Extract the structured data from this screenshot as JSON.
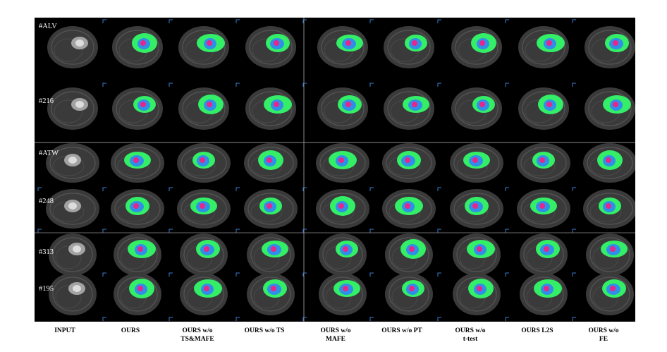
{
  "figure": {
    "rows": [
      {
        "label": "#ALV",
        "view": "axial"
      },
      {
        "label": "#216",
        "view": "axial"
      },
      {
        "label": "#ATW",
        "view": "sagittal"
      },
      {
        "label": "#248",
        "view": "sagittal"
      },
      {
        "label": "#313",
        "view": "coronal"
      },
      {
        "label": "#195",
        "view": "coronal"
      }
    ],
    "columns": [
      {
        "line1": "INPUT",
        "line2": ""
      },
      {
        "line1": "OURS",
        "line2": ""
      },
      {
        "line1": "OURS w/o",
        "line2": "TS&MAFE"
      },
      {
        "line1": "OURS w/o TS",
        "line2": ""
      },
      {
        "line1": "OURS w/o",
        "line2": "MAFE"
      },
      {
        "line1": "OURS w/o PT",
        "line2": ""
      },
      {
        "line1": "OURS w/o",
        "line2": "t-test"
      },
      {
        "line1": "OURS L2S",
        "line2": ""
      },
      {
        "line1": "OURS w/o",
        "line2": "FE"
      }
    ],
    "colors": {
      "edema": "#33ee66",
      "core": "#2f8fe8",
      "enhancing": "#e6268c",
      "background": "#000000",
      "brain": "#3a3a3a"
    }
  }
}
